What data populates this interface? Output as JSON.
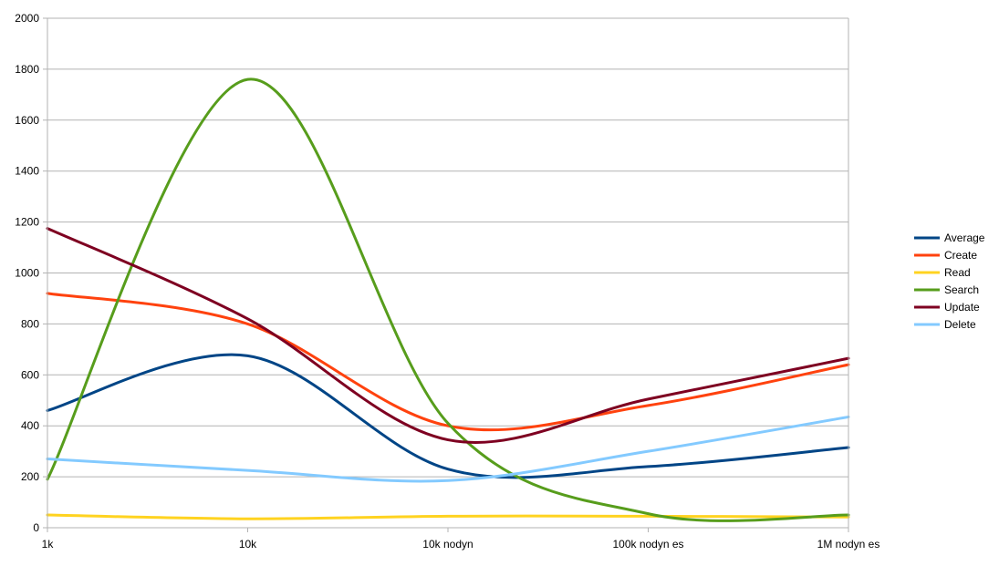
{
  "chart_data": {
    "type": "line",
    "title": "",
    "xlabel": "",
    "ylabel": "",
    "categories": [
      "1k",
      "10k",
      "10k nodyn",
      "100k nodyn es",
      "1M nodyn es"
    ],
    "ylim": [
      0,
      2000
    ],
    "yticks": [
      "0",
      "200",
      "400",
      "600",
      "800",
      "1000",
      "1200",
      "1400",
      "1600",
      "1800",
      "2000"
    ],
    "grid": true,
    "legend_position": "right",
    "series": [
      {
        "name": "Average",
        "color": "#004586",
        "values": [
          460,
          675,
          230,
          240,
          315
        ]
      },
      {
        "name": "Create",
        "color": "#ff420e",
        "values": [
          920,
          800,
          400,
          480,
          640
        ]
      },
      {
        "name": "Read",
        "color": "#ffd320",
        "values": [
          50,
          35,
          45,
          45,
          42
        ]
      },
      {
        "name": "Search",
        "color": "#579d1c",
        "values": [
          190,
          1760,
          410,
          55,
          50
        ]
      },
      {
        "name": "Update",
        "color": "#7e0021",
        "values": [
          1175,
          820,
          345,
          505,
          665
        ]
      },
      {
        "name": "Delete",
        "color": "#83caff",
        "values": [
          270,
          225,
          185,
          300,
          435
        ]
      }
    ]
  }
}
